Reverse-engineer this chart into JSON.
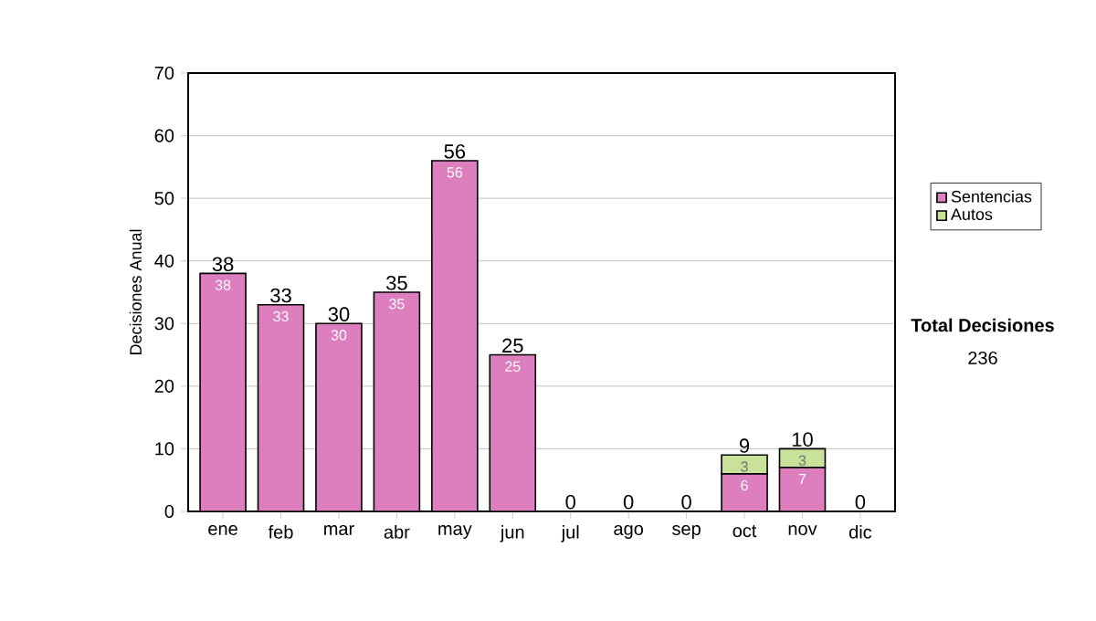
{
  "chart_data": {
    "type": "bar",
    "stacked": true,
    "ylabel": "Decisiones Anual",
    "categories": [
      "ene",
      "feb",
      "mar",
      "abr",
      "may",
      "jun",
      "jul",
      "ago",
      "sep",
      "oct",
      "nov",
      "dic"
    ],
    "series": [
      {
        "name": "Sentencias",
        "color": "#dd7fbe",
        "values": [
          38,
          33,
          30,
          35,
          56,
          25,
          0,
          0,
          0,
          6,
          7,
          0
        ],
        "value_labels": [
          "38",
          "33",
          "30",
          "35",
          "56",
          "25",
          null,
          null,
          null,
          "6",
          "7",
          null
        ]
      },
      {
        "name": "Autos",
        "color": "#c8e29a",
        "values": [
          0,
          0,
          0,
          0,
          0,
          0,
          0,
          0,
          0,
          3,
          3,
          0
        ],
        "value_labels": [
          null,
          null,
          null,
          null,
          null,
          null,
          null,
          null,
          null,
          "3",
          "3",
          null
        ]
      }
    ],
    "totals": [
      "38",
      "33",
      "30",
      "35",
      "56",
      "25",
      "0",
      "0",
      "0",
      "9",
      "10",
      "0"
    ],
    "ylim": [
      0,
      70
    ],
    "yticks": [
      0,
      10,
      20,
      30,
      40,
      50,
      60,
      70
    ],
    "grid": "y",
    "legend": "right",
    "annotations": [
      "Total Decisiones",
      "236"
    ]
  }
}
